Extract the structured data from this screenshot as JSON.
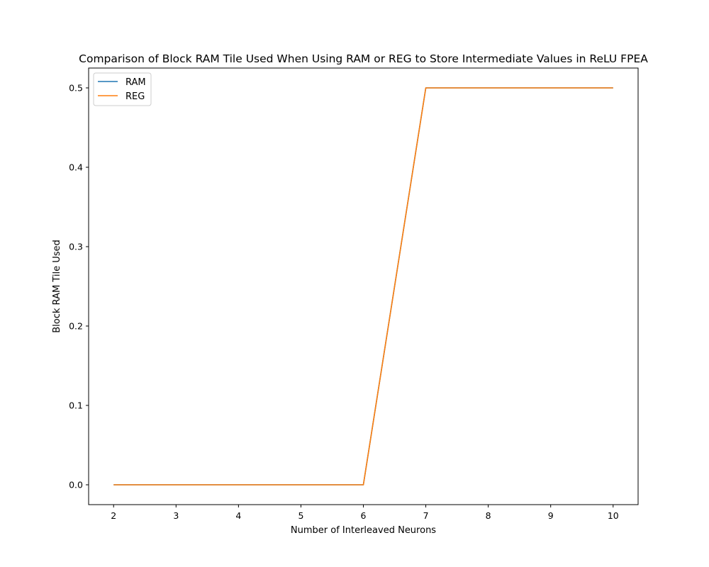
{
  "chart_data": {
    "type": "line",
    "title": "Comparison of Block RAM Tile Used When Using RAM or REG to Store Intermediate Values in ReLU FPEA",
    "xlabel": "Number of Interleaved Neurons",
    "ylabel": "Block RAM Tile Used",
    "x": [
      2,
      3,
      4,
      5,
      6,
      7,
      8,
      9,
      10
    ],
    "xlim": [
      1.6,
      10.4
    ],
    "ylim": [
      -0.025,
      0.525
    ],
    "xticks": [
      "2",
      "3",
      "4",
      "5",
      "6",
      "7",
      "8",
      "9",
      "10"
    ],
    "yticks": [
      "0.0",
      "0.1",
      "0.2",
      "0.3",
      "0.4",
      "0.5"
    ],
    "grid": false,
    "legend_position": "top-left",
    "series": [
      {
        "name": "RAM",
        "color": "#1f77b4",
        "values": [
          0,
          0,
          0,
          0,
          0,
          0.5,
          0.5,
          0.5,
          0.5
        ]
      },
      {
        "name": "REG",
        "color": "#ff7f0e",
        "values": [
          0,
          0,
          0,
          0,
          0,
          0.5,
          0.5,
          0.5,
          0.5
        ]
      }
    ]
  }
}
